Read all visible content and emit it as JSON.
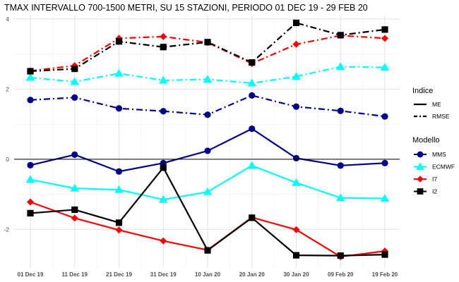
{
  "chart_data": {
    "type": "line",
    "title": "TMAX INTERVALLO 700-1500 METRI, SU 15 STAZIONI, PERIODO 01 DEC 19  -  29 FEB 20",
    "xlabel": "",
    "ylabel": "",
    "categories": [
      "01 Dec 19",
      "11 Dec 19",
      "21 Dec 19",
      "31 Dec 19",
      "10 Jan 20",
      "20 Jan 20",
      "30 Jan 20",
      "09 Feb 20",
      "19 Feb 20"
    ],
    "ylim": [
      -3.1,
      4.1
    ],
    "yticks": [
      -2,
      0,
      2,
      4
    ],
    "grid": true,
    "zero_line": true,
    "legend_position": "right",
    "legend": {
      "indice_title": "Indice",
      "indice_items": [
        {
          "label": "ME",
          "linetype": "solid"
        },
        {
          "label": "RMSE",
          "linetype": "dotdash"
        }
      ],
      "modello_title": "Modello",
      "modello_items": [
        {
          "label": "MMS",
          "color": "#00008B",
          "shape": "circle"
        },
        {
          "label": "ECMWF",
          "color": "#00FFFF",
          "shape": "triangle"
        },
        {
          "label": "I7",
          "color": "#FF0000",
          "shape": "diamond"
        },
        {
          "label": "I2",
          "color": "#000000",
          "shape": "square"
        }
      ]
    },
    "series": [
      {
        "model": "MMS",
        "indice": "ME",
        "color": "#00008B",
        "shape": "circle",
        "values": [
          -0.17,
          0.13,
          -0.35,
          -0.11,
          0.24,
          0.87,
          0.03,
          -0.18,
          -0.11
        ]
      },
      {
        "model": "MMS",
        "indice": "RMSE",
        "color": "#00008B",
        "shape": "circle",
        "values": [
          1.69,
          1.76,
          1.45,
          1.37,
          1.27,
          1.82,
          1.5,
          1.38,
          1.22
        ]
      },
      {
        "model": "ECMWF",
        "indice": "ME",
        "color": "#00FFFF",
        "shape": "triangle",
        "values": [
          -0.58,
          -0.83,
          -0.87,
          -1.15,
          -0.93,
          -0.18,
          -0.67,
          -1.1,
          -1.12
        ]
      },
      {
        "model": "ECMWF",
        "indice": "RMSE",
        "color": "#00FFFF",
        "shape": "triangle",
        "values": [
          2.33,
          2.21,
          2.45,
          2.25,
          2.28,
          2.17,
          2.36,
          2.64,
          2.62
        ]
      },
      {
        "model": "I7",
        "indice": "ME",
        "color": "#FF0000",
        "shape": "diamond",
        "values": [
          -1.22,
          -1.68,
          -2.02,
          -2.33,
          -2.59,
          -1.66,
          -2.01,
          -2.78,
          -2.62
        ]
      },
      {
        "model": "I7",
        "indice": "RMSE",
        "color": "#FF0000",
        "shape": "diamond",
        "values": [
          2.52,
          2.67,
          3.45,
          3.5,
          3.33,
          2.73,
          3.28,
          3.53,
          3.45
        ]
      },
      {
        "model": "I2",
        "indice": "ME",
        "color": "#000000",
        "shape": "square",
        "values": [
          -1.54,
          -1.44,
          -1.81,
          -0.24,
          -2.6,
          -1.67,
          -2.74,
          -2.75,
          -2.72
        ]
      },
      {
        "model": "I2",
        "indice": "RMSE",
        "color": "#000000",
        "shape": "square",
        "values": [
          2.51,
          2.58,
          3.36,
          3.2,
          3.34,
          2.76,
          3.89,
          3.54,
          3.7
        ]
      }
    ]
  }
}
